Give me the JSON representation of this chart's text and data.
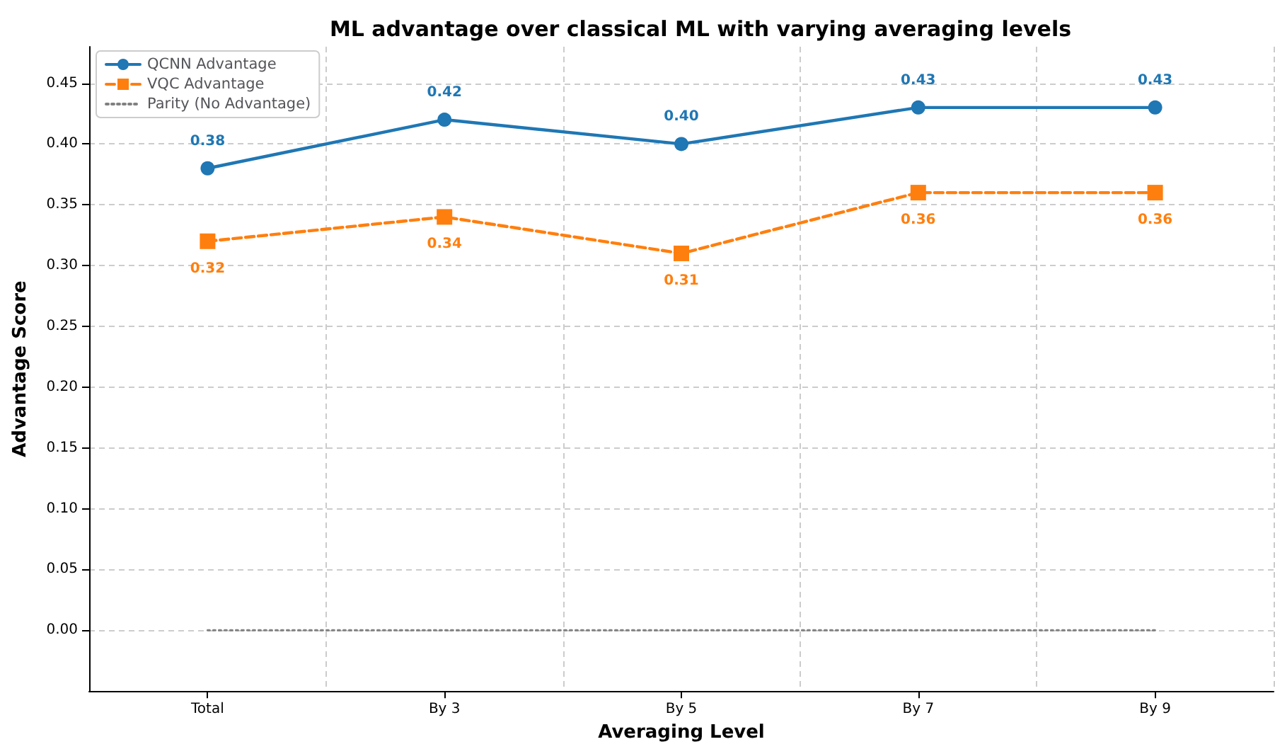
{
  "chart_data": {
    "type": "line",
    "title": "ML advantage over classical ML with varying averaging levels",
    "xlabel": "Averaging Level",
    "ylabel": "Advantage Score",
    "categories": [
      "Total",
      "By 3",
      "By 5",
      "By 7",
      "By 9"
    ],
    "series": [
      {
        "name": "QCNN Advantage",
        "color": "#1f77b4",
        "values": [
          0.38,
          0.42,
          0.4,
          0.43,
          0.43
        ],
        "marker": "circle",
        "line_style": "solid",
        "value_labels": [
          "0.38",
          "0.42",
          "0.40",
          "0.43",
          "0.43"
        ]
      },
      {
        "name": "VQC Advantage",
        "color": "#ff7f0e",
        "values": [
          0.32,
          0.34,
          0.31,
          0.36,
          0.36
        ],
        "marker": "square",
        "line_style": "dashed",
        "value_labels": [
          "0.32",
          "0.34",
          "0.31",
          "0.36",
          "0.36"
        ]
      },
      {
        "name": "Parity (No Advantage)",
        "color": "#808080",
        "values": [
          0,
          0,
          0,
          0,
          0
        ],
        "marker": "none",
        "line_style": "dotted"
      }
    ],
    "ylim": [
      -0.05,
      0.48
    ],
    "yticks": [
      {
        "value": 0,
        "label": "0.00"
      },
      {
        "value": 0.05,
        "label": "0.05"
      },
      {
        "value": 0.1,
        "label": "0.10"
      },
      {
        "value": 0.15,
        "label": "0.15"
      },
      {
        "value": 0.2,
        "label": "0.20"
      },
      {
        "value": 0.25,
        "label": "0.25"
      },
      {
        "value": 0.3,
        "label": "0.30"
      },
      {
        "value": 0.35,
        "label": "0.35"
      },
      {
        "value": 0.4,
        "label": "0.40"
      },
      {
        "value": 0.45,
        "label": "0.45"
      }
    ],
    "grid": true,
    "legend": "top left"
  }
}
